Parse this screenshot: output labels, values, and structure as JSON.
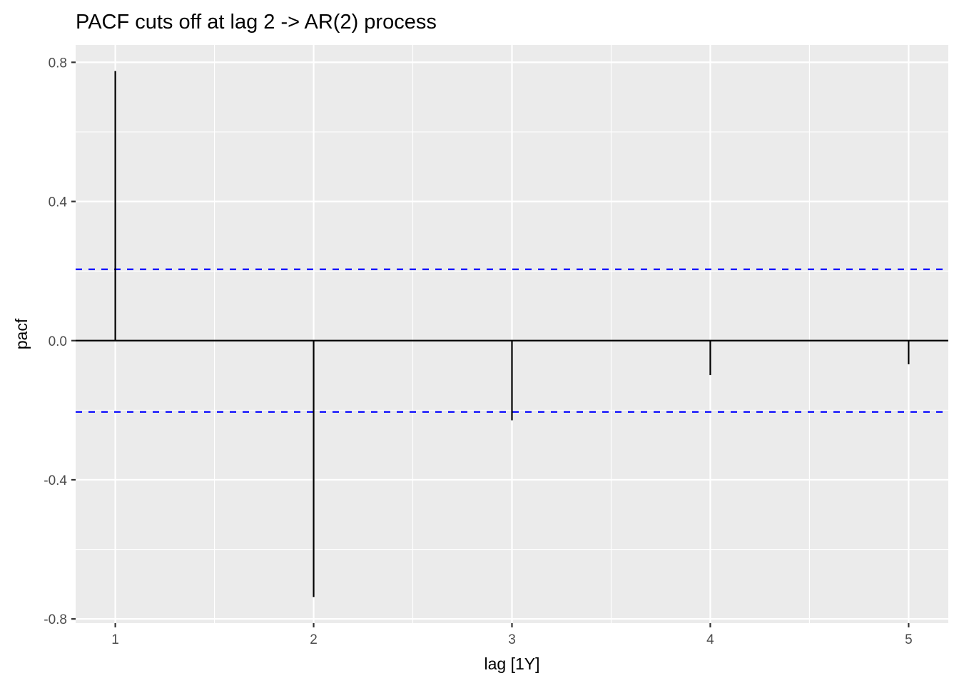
{
  "chart_data": {
    "type": "bar",
    "subtype": "pacf-lollipop",
    "title": "PACF cuts off at lag 2 -> AR(2) process",
    "xlabel": "lag [1Y]",
    "ylabel": "pacf",
    "x": [
      1,
      2,
      3,
      4,
      5
    ],
    "x_tick_labels": [
      "1",
      "2",
      "3",
      "4",
      "5"
    ],
    "values": [
      0.775,
      -0.737,
      -0.229,
      -0.099,
      -0.068
    ],
    "y_ticks": [
      0.8,
      0.4,
      0.0,
      -0.4,
      -0.8
    ],
    "y_tick_labels": [
      "0.8",
      "0.4",
      "0.0",
      "-0.4",
      "-0.8"
    ],
    "xlim": [
      0.8,
      5.2
    ],
    "ylim": [
      -0.812,
      0.85
    ],
    "confidence_bounds": [
      0.205,
      -0.205
    ],
    "grid": true,
    "colors": {
      "panel": "#ebebeb",
      "grid": "#ffffff",
      "spike": "#000000",
      "zero_line": "#000000",
      "bound_line": "#0000ff"
    }
  }
}
